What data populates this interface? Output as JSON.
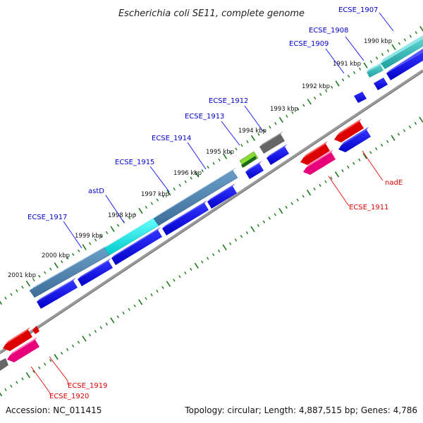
{
  "title": "Escherichia coli SE11, complete genome",
  "accession": "Accession: NC_011415",
  "topology": "Topology: circular; Length: 4,887,515 bp; Genes: 4,786",
  "colors": {
    "forward_label": "#0000cc",
    "reverse_label": "#dd0000",
    "tick": "#1a7a1a",
    "backbone": "#888888"
  },
  "kbp_marks": [
    "1990 kbp",
    "1991 kbp",
    "1992 kbp",
    "1993 kbp",
    "1994 kbp",
    "1995 kbp",
    "1996 kbp",
    "1997 kbp",
    "1998 kbp",
    "1999 kbp",
    "2000 kbp",
    "2001 kbp"
  ],
  "gene_labels": [
    {
      "text": "ECSE_1907",
      "strand": "forward"
    },
    {
      "text": "ECSE_1908",
      "strand": "forward"
    },
    {
      "text": "ECSE_1909",
      "strand": "forward"
    },
    {
      "text": "ECSE_1912",
      "strand": "forward"
    },
    {
      "text": "ECSE_1913",
      "strand": "forward"
    },
    {
      "text": "ECSE_1914",
      "strand": "forward"
    },
    {
      "text": "ECSE_1915",
      "strand": "forward"
    },
    {
      "text": "astD",
      "strand": "forward"
    },
    {
      "text": "ECSE_1917",
      "strand": "forward"
    },
    {
      "text": "nadE",
      "strand": "reverse"
    },
    {
      "text": "ECSE_1911",
      "strand": "reverse"
    },
    {
      "text": "ECSE_1919",
      "strand": "reverse"
    },
    {
      "text": "ECSE_1920",
      "strand": "reverse"
    }
  ]
}
